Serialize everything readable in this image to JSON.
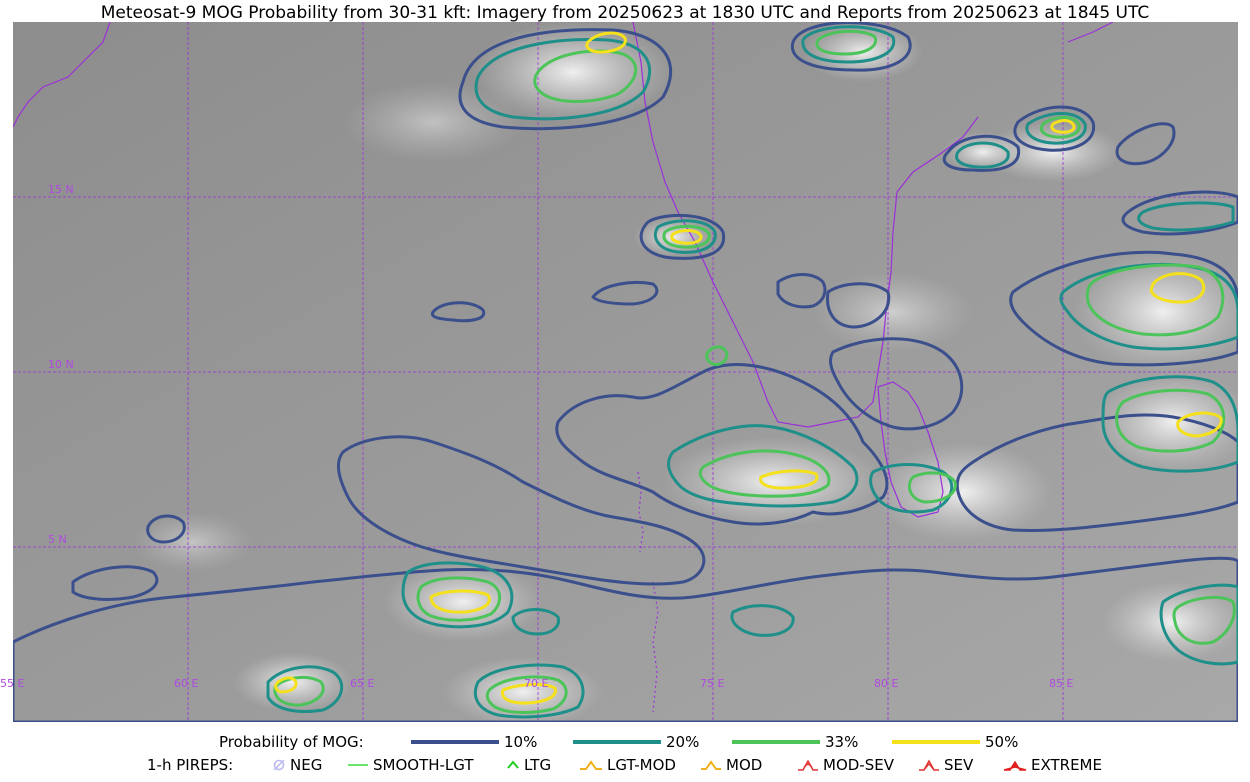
{
  "title": "Meteosat-9 MOG Probability from 30-31 kft: Imagery from 20250623 at 1830 UTC and Reports from 20250623 at 1845 UTC",
  "map": {
    "lat_labels": [
      "15 N",
      "10 N",
      "5 N"
    ],
    "lon_labels": [
      "55 E",
      "60 E",
      "65 E",
      "70 E",
      "75 E",
      "80 E",
      "85 E"
    ],
    "gridline_color": "#9b30d9",
    "coastline_color": "#9b30d9"
  },
  "legend": {
    "probability_label": "Probability of MOG:",
    "levels": [
      {
        "label": "10%",
        "color": "#3b4f8c"
      },
      {
        "label": "20%",
        "color": "#1f8f8a"
      },
      {
        "label": "33%",
        "color": "#4cc45a"
      },
      {
        "label": "50%",
        "color": "#f5e01c"
      }
    ],
    "pireps_label": "1-h PIREPS:",
    "pireps": [
      {
        "label": "NEG",
        "icon": "neg-icon",
        "color": "#b8b8f0"
      },
      {
        "label": "SMOOTH-LGT",
        "icon": "smooth-lgt-icon",
        "color": "#3ddc3d"
      },
      {
        "label": "LTG",
        "icon": "ltg-icon",
        "color": "#22cc22"
      },
      {
        "label": "LGT-MOD",
        "icon": "lgt-mod-icon",
        "color": "#f0b020"
      },
      {
        "label": "MOD",
        "icon": "mod-icon",
        "color": "#f0b020"
      },
      {
        "label": "MOD-SEV",
        "icon": "mod-sev-icon",
        "color": "#e03030"
      },
      {
        "label": "SEV",
        "icon": "sev-icon",
        "color": "#e03030"
      },
      {
        "label": "EXTREME",
        "icon": "extreme-icon",
        "color": "#e02020"
      }
    ]
  }
}
